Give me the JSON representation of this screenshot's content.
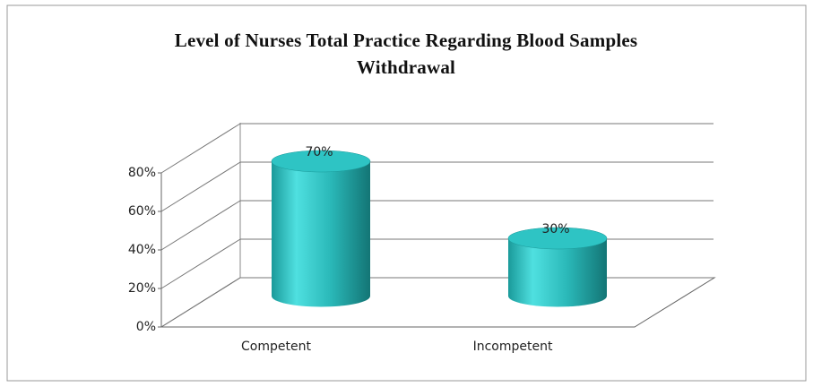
{
  "chart_data": {
    "type": "bar3d",
    "title": "Level of Nurses Total Practice Regarding Blood Samples Withdrawal",
    "categories": [
      "Competent",
      "Incompetent"
    ],
    "values": [
      70,
      30
    ],
    "value_labels": [
      "70%",
      "30%"
    ],
    "color": "#2ec4c4",
    "ylim": [
      0,
      80
    ],
    "yticks": [
      {
        "value": 0,
        "label": "0%"
      },
      {
        "value": 20,
        "label": "20%"
      },
      {
        "value": 40,
        "label": "40%"
      },
      {
        "value": 60,
        "label": "60%"
      },
      {
        "value": 80,
        "label": "80%"
      }
    ],
    "grid": true
  }
}
